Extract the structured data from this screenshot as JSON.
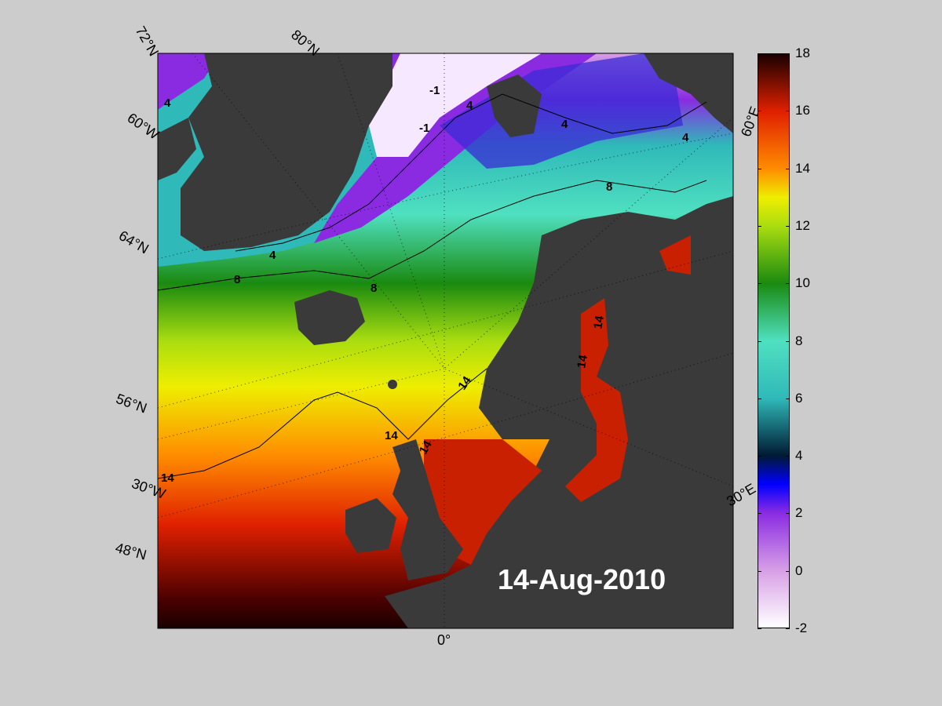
{
  "map": {
    "date": "14-Aug-2010",
    "grid_labels": {
      "lat_72": "72°N",
      "lat_80": "80°N",
      "lat_60": "60°W",
      "lat_64": "64°N",
      "lat_56": "56°N",
      "lon_30w": "30°W",
      "lat_48": "48°N",
      "lon_0": "0°",
      "lon_60e": "60°E",
      "lon_30e": "30°E"
    },
    "contour_labels": [
      "4",
      "-1",
      "-1",
      "4",
      "4",
      "4",
      "8",
      "4",
      "8",
      "8",
      "14",
      "14",
      "14",
      "14",
      "14",
      "14"
    ]
  },
  "colorbar": {
    "min": -2,
    "max": 18,
    "ticks": [
      "18",
      "16",
      "14",
      "12",
      "10",
      "8",
      "6",
      "4",
      "2",
      "0",
      "-2"
    ],
    "colors": {
      "c_-2": "#ffffff",
      "c_0": "#d79fe6",
      "c_2": "#8a2be2",
      "c_3": "#0000ff",
      "c_4": "#001a33",
      "c_6": "#2fb9b9",
      "c_8": "#4fe0c0",
      "c_10": "#1a8a10",
      "c_12": "#aadd10",
      "c_13": "#eeee00",
      "c_14": "#ff8c00",
      "c_16": "#e02000",
      "c_18": "#1a0000"
    }
  }
}
